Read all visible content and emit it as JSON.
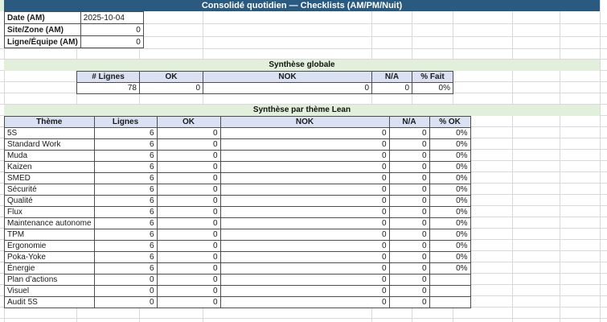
{
  "title": "Consolidé quotidien — Checklists (AM/PM/Nuit)",
  "colors": {
    "title_bar": "#2A5A80",
    "section_band_green": "#E2EFDA",
    "table_header_blue": "#D9E1F2",
    "grid_line": "#D9D9D9",
    "cell_border": "#4D4D4D"
  },
  "info_panel": {
    "rows": [
      {
        "label": "Date (AM)",
        "value": "2025-10-04"
      },
      {
        "label": "Site/Zone (AM)",
        "value": "0"
      },
      {
        "label": "Ligne/Équipe (AM)",
        "value": "0"
      }
    ]
  },
  "global_summary": {
    "band_title": "Synthèse globale",
    "headers": [
      "# Lignes",
      "OK",
      "NOK",
      "N/A",
      "% Fait"
    ],
    "values": [
      "78",
      "0",
      "0",
      "0",
      "0%"
    ]
  },
  "theme_summary": {
    "band_title": "Synthèse par thème Lean",
    "headers": [
      "Thème",
      "Lignes",
      "OK",
      "NOK",
      "N/A",
      "% OK"
    ],
    "rows": [
      {
        "theme": "5S",
        "lignes": "6",
        "ok": "0",
        "nok": "0",
        "na": "0",
        "pct": "0%"
      },
      {
        "theme": "Standard Work",
        "lignes": "6",
        "ok": "0",
        "nok": "0",
        "na": "0",
        "pct": "0%"
      },
      {
        "theme": "Muda",
        "lignes": "6",
        "ok": "0",
        "nok": "0",
        "na": "0",
        "pct": "0%"
      },
      {
        "theme": "Kaizen",
        "lignes": "6",
        "ok": "0",
        "nok": "0",
        "na": "0",
        "pct": "0%"
      },
      {
        "theme": "SMED",
        "lignes": "6",
        "ok": "0",
        "nok": "0",
        "na": "0",
        "pct": "0%"
      },
      {
        "theme": "Sécurité",
        "lignes": "6",
        "ok": "0",
        "nok": "0",
        "na": "0",
        "pct": "0%"
      },
      {
        "theme": "Qualité",
        "lignes": "6",
        "ok": "0",
        "nok": "0",
        "na": "0",
        "pct": "0%"
      },
      {
        "theme": "Flux",
        "lignes": "6",
        "ok": "0",
        "nok": "0",
        "na": "0",
        "pct": "0%"
      },
      {
        "theme": "Maintenance autonome",
        "lignes": "6",
        "ok": "0",
        "nok": "0",
        "na": "0",
        "pct": "0%"
      },
      {
        "theme": "TPM",
        "lignes": "6",
        "ok": "0",
        "nok": "0",
        "na": "0",
        "pct": "0%"
      },
      {
        "theme": "Ergonomie",
        "lignes": "6",
        "ok": "0",
        "nok": "0",
        "na": "0",
        "pct": "0%"
      },
      {
        "theme": "Poka-Yoke",
        "lignes": "6",
        "ok": "0",
        "nok": "0",
        "na": "0",
        "pct": "0%"
      },
      {
        "theme": "Énergie",
        "lignes": "6",
        "ok": "0",
        "nok": "0",
        "na": "0",
        "pct": "0%"
      },
      {
        "theme": "Plan d’actions",
        "lignes": "0",
        "ok": "0",
        "nok": "0",
        "na": "0",
        "pct": ""
      },
      {
        "theme": "Visuel",
        "lignes": "0",
        "ok": "0",
        "nok": "0",
        "na": "0",
        "pct": ""
      },
      {
        "theme": "Audit 5S",
        "lignes": "0",
        "ok": "0",
        "nok": "0",
        "na": "0",
        "pct": ""
      }
    ]
  }
}
